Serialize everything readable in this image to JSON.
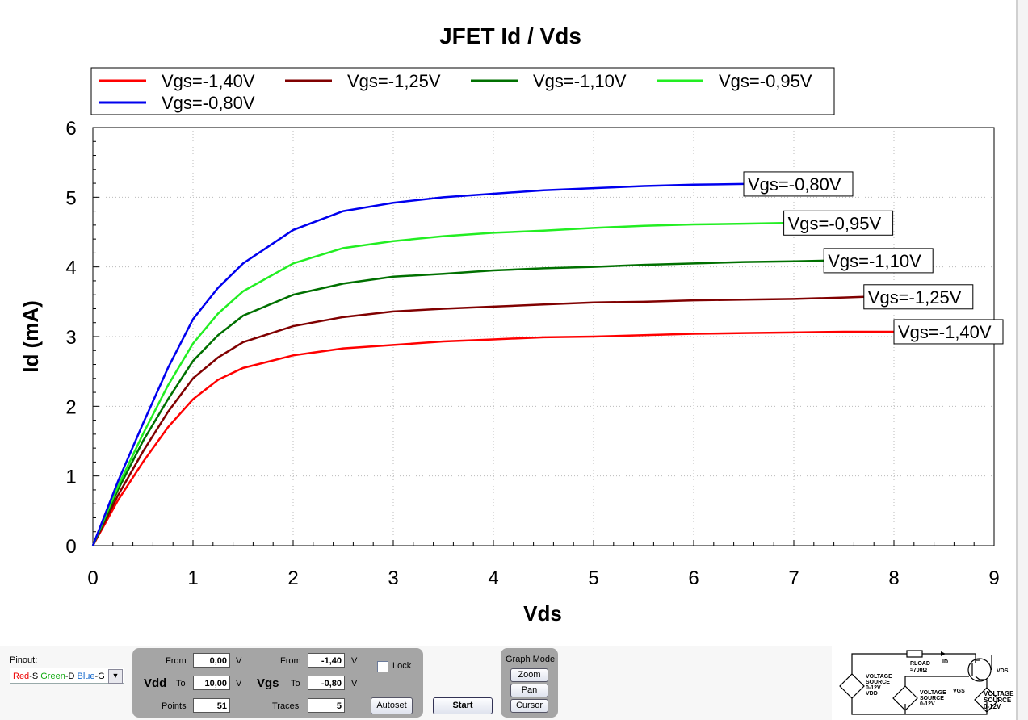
{
  "chart_data": {
    "type": "line",
    "title": "JFET Id / Vds",
    "xlabel": "Vds",
    "ylabel": "Id (mA)",
    "xlim": [
      0,
      9
    ],
    "ylim": [
      0,
      6
    ],
    "xticks": [
      "0",
      "1",
      "2",
      "3",
      "4",
      "5",
      "6",
      "7",
      "8",
      "9"
    ],
    "yticks": [
      "0",
      "1",
      "2",
      "3",
      "4",
      "5",
      "6"
    ],
    "grid": true,
    "legend": "top",
    "series": [
      {
        "name": "Vgs=-1,40V",
        "color": "#ff0000",
        "x": [
          0,
          0.25,
          0.5,
          0.75,
          1,
          1.25,
          1.5,
          2,
          2.5,
          3,
          3.5,
          4,
          4.5,
          5,
          5.5,
          6,
          6.5,
          7,
          7.5,
          8
        ],
        "y": [
          0,
          0.65,
          1.2,
          1.7,
          2.1,
          2.38,
          2.55,
          2.73,
          2.83,
          2.88,
          2.93,
          2.96,
          2.99,
          3.0,
          3.02,
          3.04,
          3.05,
          3.06,
          3.07,
          3.07
        ]
      },
      {
        "name": "Vgs=-1,25V",
        "color": "#800000",
        "x": [
          0,
          0.25,
          0.5,
          0.75,
          1,
          1.25,
          1.5,
          2,
          2.5,
          3,
          3.5,
          4,
          4.5,
          5,
          5.5,
          6,
          6.5,
          7,
          7.5,
          7.7
        ],
        "y": [
          0,
          0.72,
          1.35,
          1.92,
          2.4,
          2.7,
          2.92,
          3.15,
          3.28,
          3.36,
          3.4,
          3.43,
          3.46,
          3.49,
          3.5,
          3.52,
          3.53,
          3.54,
          3.56,
          3.57
        ]
      },
      {
        "name": "Vgs=-1,10V",
        "color": "#007000",
        "x": [
          0,
          0.25,
          0.5,
          0.75,
          1,
          1.25,
          1.5,
          2,
          2.5,
          3,
          3.5,
          4,
          4.5,
          5,
          5.5,
          6,
          6.5,
          7,
          7.3
        ],
        "y": [
          0,
          0.8,
          1.5,
          2.1,
          2.65,
          3.02,
          3.3,
          3.6,
          3.76,
          3.86,
          3.9,
          3.95,
          3.98,
          4.0,
          4.03,
          4.05,
          4.07,
          4.08,
          4.09
        ]
      },
      {
        "name": "Vgs=-0,95V",
        "color": "#22ee22",
        "x": [
          0,
          0.25,
          0.5,
          0.75,
          1,
          1.25,
          1.5,
          2,
          2.5,
          3,
          3.5,
          4,
          4.5,
          5,
          5.5,
          6,
          6.5,
          6.9
        ],
        "y": [
          0,
          0.85,
          1.6,
          2.3,
          2.9,
          3.33,
          3.65,
          4.05,
          4.27,
          4.37,
          4.44,
          4.49,
          4.52,
          4.56,
          4.59,
          4.61,
          4.62,
          4.63
        ]
      },
      {
        "name": "Vgs=-0,80V",
        "color": "#0000ee",
        "x": [
          0,
          0.25,
          0.5,
          0.75,
          1,
          1.25,
          1.5,
          2,
          2.5,
          3,
          3.5,
          4,
          4.5,
          5,
          5.5,
          6,
          6.5
        ],
        "y": [
          0,
          0.92,
          1.75,
          2.55,
          3.25,
          3.7,
          4.05,
          4.53,
          4.8,
          4.92,
          5.0,
          5.05,
          5.1,
          5.13,
          5.16,
          5.18,
          5.19
        ]
      }
    ]
  },
  "controls": {
    "pinout_label": "Pinout:",
    "pinout_value": {
      "red": "Red",
      "s": "-S ",
      "green": "Green",
      "d": "-D ",
      "blue": "Blue",
      "g": "-G"
    },
    "vdd": {
      "label": "Vdd",
      "from_label": "From",
      "from": "0,00",
      "to_label": "To",
      "to": "10,00",
      "unit": "V",
      "points_label": "Points",
      "points": "51"
    },
    "vgs": {
      "label": "Vgs",
      "from_label": "From",
      "from": "-1,40",
      "to_label": "To",
      "to": "-0,80",
      "unit": "V",
      "traces_label": "Traces",
      "traces": "5"
    },
    "lock_label": "Lock",
    "autoset_label": "Autoset",
    "start_label": "Start",
    "graph_mode": {
      "title": "Graph Mode",
      "zoom": "Zoom",
      "pan": "Pan",
      "cursor": "Cursor"
    }
  },
  "circuit": {
    "rload": "RLOAD",
    "rload_value": "≈700Ω",
    "id": "ID",
    "vds": "VDS",
    "vgs": "VGS",
    "source1": [
      "VOLTAGE",
      "SOURCE",
      "0-12V",
      "VDD"
    ],
    "source2": [
      "VOLTAGE",
      "SOURCE",
      "0-12V"
    ],
    "source3": [
      "VOLTAGE",
      "SOURCE",
      "0-12V"
    ]
  }
}
